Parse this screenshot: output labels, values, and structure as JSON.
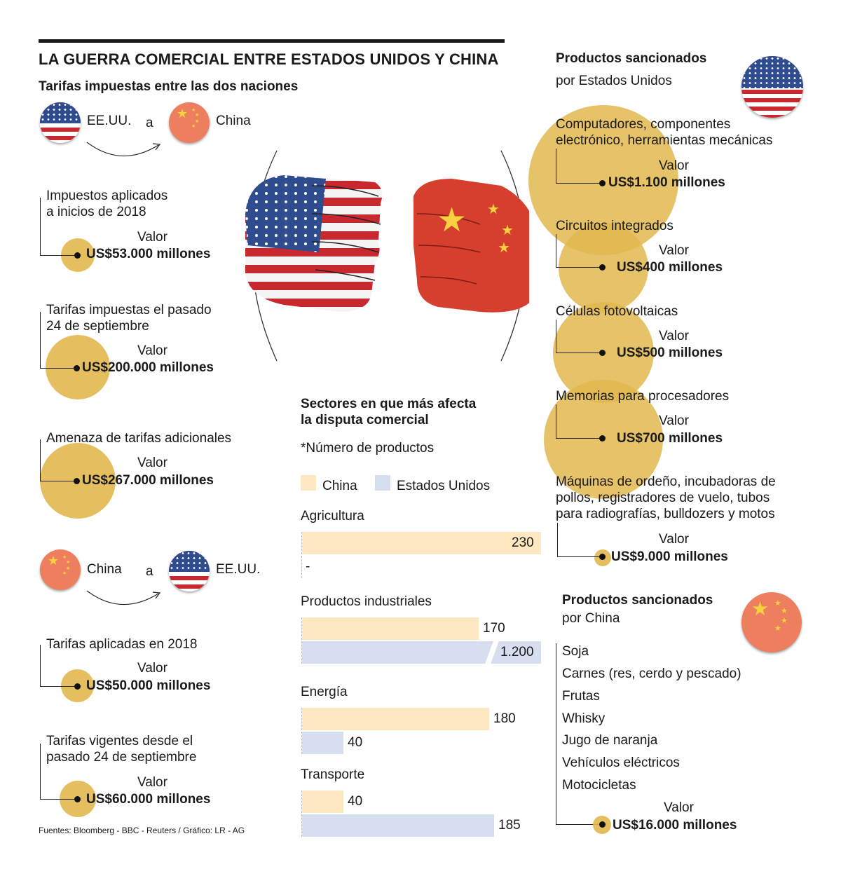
{
  "title": "LA GUERRA COMERCIAL ENTRE ESTADOS UNIDOS Y CHINA",
  "left": {
    "subtitle": "Tarifas impuestas entre las dos naciones",
    "us_to_china": {
      "from": "EE.UU.",
      "connector": "a",
      "to": "China"
    },
    "china_to_us": {
      "from": "China",
      "connector": "a",
      "to": "EE.UU."
    },
    "value_label": "Valor",
    "items_us": [
      {
        "label_line1": "Impuestos aplicados",
        "label_line2": "a inicios de 2018",
        "value": "US$53.000 millones",
        "amount": 53000
      },
      {
        "label_line1": "Tarifas impuestas el pasado",
        "label_line2": "24 de septiembre",
        "value": "US$200.000 millones",
        "amount": 200000
      },
      {
        "label_line1": "Amenaza de tarifas adicionales",
        "label_line2": "",
        "value": "US$267.000 millones",
        "amount": 267000
      }
    ],
    "items_cn": [
      {
        "label_line1": "Tarifas aplicadas en 2018",
        "label_line2": "",
        "value": "US$50.000 millones",
        "amount": 50000
      },
      {
        "label_line1": "Tarifas vigentes desde el",
        "label_line2": "pasado 24 de septiembre",
        "value": "US$60.000 millones",
        "amount": 60000
      }
    ]
  },
  "right_us": {
    "title": "Productos sancionados",
    "subtitle": "por Estados Unidos",
    "value_label": "Valor",
    "items": [
      {
        "line1": "Computadores, componentes",
        "line2": "electrónico, herramientas mecánicas",
        "line3": "",
        "value": "US$1.100 millones",
        "amount": 1100
      },
      {
        "line1": "Circuitos integrados",
        "line2": "",
        "line3": "",
        "value": "US$400 millones",
        "amount": 400
      },
      {
        "line1": "Células fotovoltaicas",
        "line2": "",
        "line3": "",
        "value": "US$500 millones",
        "amount": 500
      },
      {
        "line1": "Memorias para procesadores",
        "line2": "",
        "line3": "",
        "value": "US$700 millones",
        "amount": 700
      },
      {
        "line1": "Máquinas de ordeño, incubadoras de",
        "line2": "pollos, registradores de vuelo, tubos",
        "line3": "para radiografías, bulldozers y motos",
        "value": "US$9.000 millones",
        "amount": 9000
      }
    ]
  },
  "right_cn": {
    "title": "Productos sancionados",
    "subtitle": "por China",
    "products": [
      "Soja",
      "Carnes (res, cerdo y pescado)",
      "Frutas",
      "Whisky",
      "Jugo de naranja",
      "Vehículos eléctricos",
      "Motocicletas"
    ],
    "value_label": "Valor",
    "value": "US$16.000 millones",
    "amount": 16000
  },
  "chart_data": {
    "type": "bar",
    "title": "Sectores en que más afecta",
    "title2": "la disputa comercial",
    "note": "*Número de productos",
    "categories": [
      "Agricultura",
      "Productos industriales",
      "Energía",
      "Transporte"
    ],
    "series": [
      {
        "name": "China",
        "values": [
          230,
          170,
          180,
          40
        ],
        "labels": [
          "230",
          "170",
          "180",
          "40"
        ],
        "color": "#fde8c2"
      },
      {
        "name": "Estados Unidos",
        "values": [
          0,
          1200,
          40,
          185
        ],
        "labels": [
          "-",
          "1.200",
          "40",
          "185"
        ],
        "color": "#d6deef"
      }
    ]
  },
  "source": "Fuentes: Bloomberg - BBC - Reuters / Gráfico: LR - AG",
  "colors": {
    "circle": "#e2b74f",
    "china_flag": "#ed7f5f",
    "us_red": "#c8292f",
    "us_blue": "#2f4c8f"
  }
}
